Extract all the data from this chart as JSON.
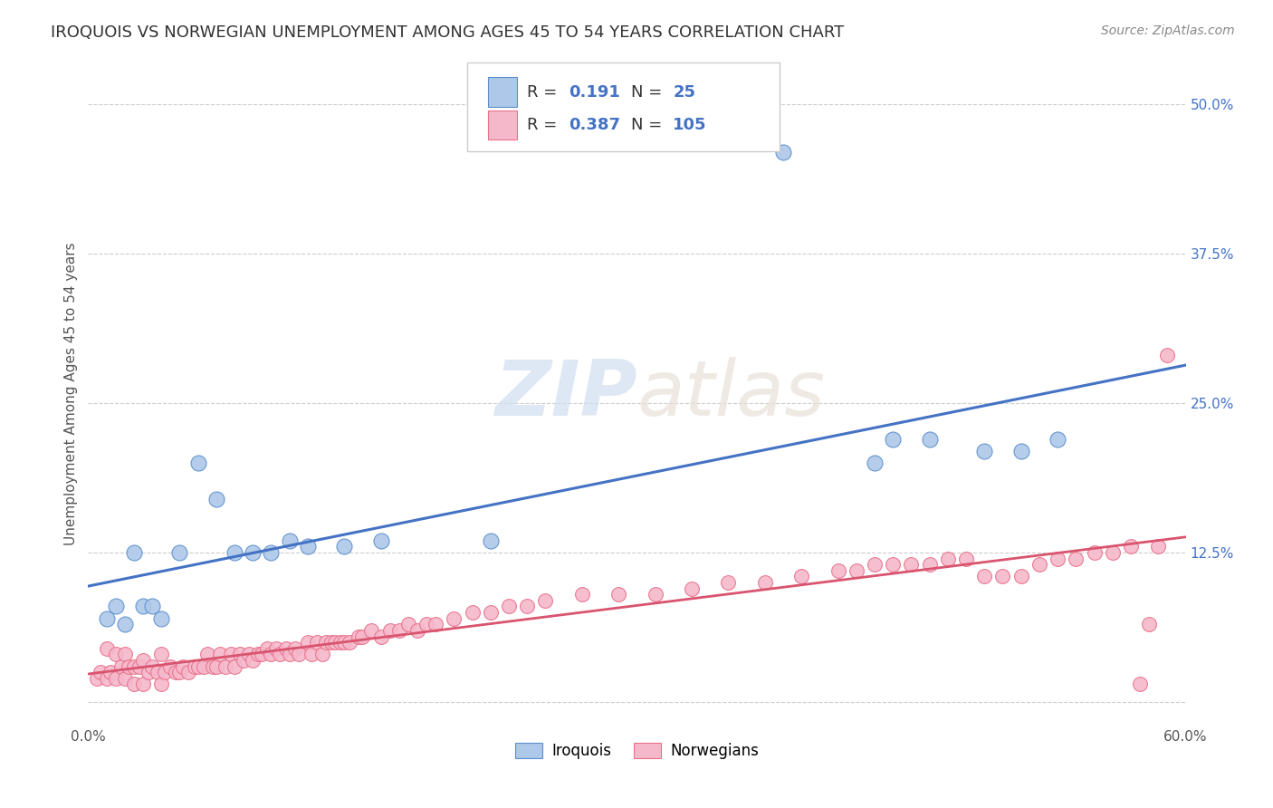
{
  "title": "IROQUOIS VS NORWEGIAN UNEMPLOYMENT AMONG AGES 45 TO 54 YEARS CORRELATION CHART",
  "source": "Source: ZipAtlas.com",
  "ylabel": "Unemployment Among Ages 45 to 54 years",
  "xlim": [
    0.0,
    0.6
  ],
  "ylim": [
    -0.02,
    0.535
  ],
  "xticks": [
    0.0,
    0.1,
    0.2,
    0.3,
    0.4,
    0.5,
    0.6
  ],
  "xticklabels": [
    "0.0%",
    "",
    "",
    "",
    "",
    "",
    "60.0%"
  ],
  "yticks": [
    0.0,
    0.125,
    0.25,
    0.375,
    0.5
  ],
  "yticklabels": [
    "",
    "12.5%",
    "25.0%",
    "37.5%",
    "50.0%"
  ],
  "iroquois_color": "#adc8e8",
  "norwegian_color": "#f5b8cb",
  "iroquois_edge_color": "#5b8fcc",
  "norwegian_edge_color": "#e8708a",
  "iroquois_line_color": "#4472c4",
  "norwegian_line_color": "#d9546e",
  "iroquois_R": 0.191,
  "iroquois_N": 25,
  "norwegian_R": 0.387,
  "norwegian_N": 105,
  "iroquois_x": [
    0.01,
    0.015,
    0.02,
    0.025,
    0.03,
    0.035,
    0.04,
    0.05,
    0.06,
    0.07,
    0.08,
    0.09,
    0.1,
    0.11,
    0.12,
    0.14,
    0.16,
    0.22,
    0.38,
    0.43,
    0.44,
    0.46,
    0.49,
    0.51,
    0.53
  ],
  "iroquois_y": [
    0.07,
    0.08,
    0.065,
    0.125,
    0.08,
    0.08,
    0.07,
    0.125,
    0.2,
    0.17,
    0.125,
    0.125,
    0.125,
    0.135,
    0.13,
    0.13,
    0.135,
    0.135,
    0.46,
    0.2,
    0.22,
    0.22,
    0.21,
    0.21,
    0.22
  ],
  "norwegian_x": [
    0.005,
    0.007,
    0.01,
    0.01,
    0.012,
    0.015,
    0.015,
    0.018,
    0.02,
    0.02,
    0.022,
    0.025,
    0.025,
    0.028,
    0.03,
    0.03,
    0.033,
    0.035,
    0.038,
    0.04,
    0.04,
    0.042,
    0.045,
    0.048,
    0.05,
    0.052,
    0.055,
    0.058,
    0.06,
    0.063,
    0.065,
    0.068,
    0.07,
    0.072,
    0.075,
    0.078,
    0.08,
    0.083,
    0.085,
    0.088,
    0.09,
    0.093,
    0.095,
    0.098,
    0.1,
    0.103,
    0.105,
    0.108,
    0.11,
    0.113,
    0.115,
    0.12,
    0.122,
    0.125,
    0.128,
    0.13,
    0.133,
    0.135,
    0.138,
    0.14,
    0.143,
    0.148,
    0.15,
    0.155,
    0.16,
    0.165,
    0.17,
    0.175,
    0.18,
    0.185,
    0.19,
    0.2,
    0.21,
    0.22,
    0.23,
    0.24,
    0.25,
    0.27,
    0.29,
    0.31,
    0.33,
    0.35,
    0.37,
    0.39,
    0.41,
    0.42,
    0.43,
    0.44,
    0.45,
    0.46,
    0.47,
    0.48,
    0.49,
    0.5,
    0.51,
    0.52,
    0.53,
    0.54,
    0.55,
    0.56,
    0.57,
    0.575,
    0.58,
    0.585,
    0.59
  ],
  "norwegian_y": [
    0.02,
    0.025,
    0.02,
    0.045,
    0.025,
    0.02,
    0.04,
    0.03,
    0.02,
    0.04,
    0.03,
    0.015,
    0.03,
    0.03,
    0.015,
    0.035,
    0.025,
    0.03,
    0.025,
    0.015,
    0.04,
    0.025,
    0.03,
    0.025,
    0.025,
    0.03,
    0.025,
    0.03,
    0.03,
    0.03,
    0.04,
    0.03,
    0.03,
    0.04,
    0.03,
    0.04,
    0.03,
    0.04,
    0.035,
    0.04,
    0.035,
    0.04,
    0.04,
    0.045,
    0.04,
    0.045,
    0.04,
    0.045,
    0.04,
    0.045,
    0.04,
    0.05,
    0.04,
    0.05,
    0.04,
    0.05,
    0.05,
    0.05,
    0.05,
    0.05,
    0.05,
    0.055,
    0.055,
    0.06,
    0.055,
    0.06,
    0.06,
    0.065,
    0.06,
    0.065,
    0.065,
    0.07,
    0.075,
    0.075,
    0.08,
    0.08,
    0.085,
    0.09,
    0.09,
    0.09,
    0.095,
    0.1,
    0.1,
    0.105,
    0.11,
    0.11,
    0.115,
    0.115,
    0.115,
    0.115,
    0.12,
    0.12,
    0.105,
    0.105,
    0.105,
    0.115,
    0.12,
    0.12,
    0.125,
    0.125,
    0.13,
    0.015,
    0.065,
    0.13,
    0.29
  ],
  "background_color": "#ffffff",
  "watermark_zip": "ZIP",
  "watermark_atlas": "atlas",
  "title_fontsize": 13,
  "axis_label_fontsize": 11,
  "tick_fontsize": 11,
  "legend_fontsize": 12,
  "source_fontsize": 10
}
